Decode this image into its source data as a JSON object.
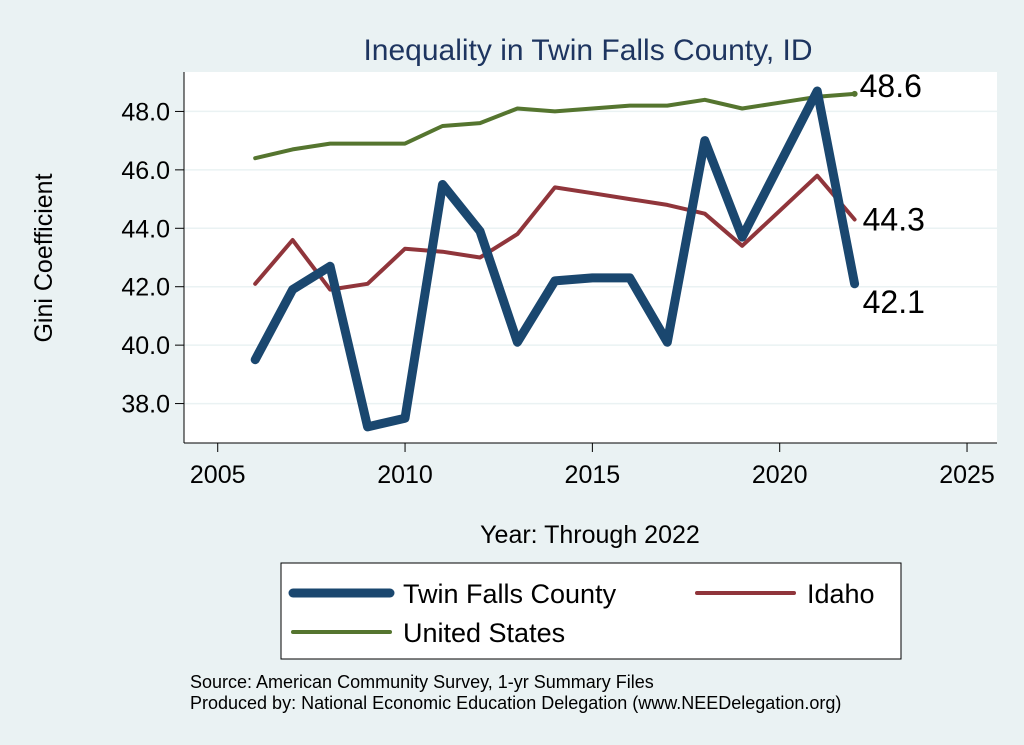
{
  "chart_data": {
    "type": "line",
    "title": "Inequality in Twin Falls County, ID",
    "xlabel": "Year: Through 2022",
    "ylabel": "Gini Coefficient",
    "xlim": [
      2004.1,
      2025.8
    ],
    "ylim": [
      36.65,
      49.35
    ],
    "xticks": [
      2005,
      2010,
      2015,
      2020,
      2025
    ],
    "yticks": [
      38,
      40,
      42,
      44,
      46,
      48
    ],
    "xtick_labels": [
      "2005",
      "2010",
      "2015",
      "2020",
      "2025"
    ],
    "ytick_labels": [
      "38.0",
      "40.0",
      "42.0",
      "44.0",
      "46.0",
      "48.0"
    ],
    "grid": true,
    "legend_position": "bottom",
    "x": [
      2006,
      2007,
      2008,
      2009,
      2010,
      2011,
      2012,
      2013,
      2014,
      2015,
      2016,
      2017,
      2018,
      2019,
      2020,
      2021,
      2022
    ],
    "series": [
      {
        "name": "Twin Falls County",
        "color": "#1a476f",
        "values": [
          39.5,
          41.9,
          42.7,
          37.2,
          37.5,
          45.5,
          43.9,
          40.1,
          42.2,
          42.3,
          42.3,
          40.1,
          47.0,
          43.7,
          46.2,
          48.7,
          42.1
        ],
        "end_label": "42.1"
      },
      {
        "name": "Idaho",
        "color": "#90353b",
        "values": [
          42.1,
          43.6,
          41.9,
          42.1,
          43.3,
          43.2,
          43.0,
          43.8,
          45.4,
          45.2,
          45.0,
          44.8,
          44.5,
          43.4,
          44.6,
          45.8,
          44.3
        ],
        "end_label": "44.3"
      },
      {
        "name": "United States",
        "color": "#55752f",
        "values": [
          46.4,
          46.7,
          46.9,
          46.9,
          46.9,
          47.5,
          47.6,
          48.1,
          48.0,
          48.1,
          48.2,
          48.2,
          48.4,
          48.1,
          48.3,
          48.5,
          48.6
        ],
        "end_label": "48.6"
      }
    ],
    "notes": [
      "Source: American Community Survey, 1-yr Summary Files",
      "Produced by: National Economic Education Delegation (www.NEEDelegation.org)"
    ]
  }
}
